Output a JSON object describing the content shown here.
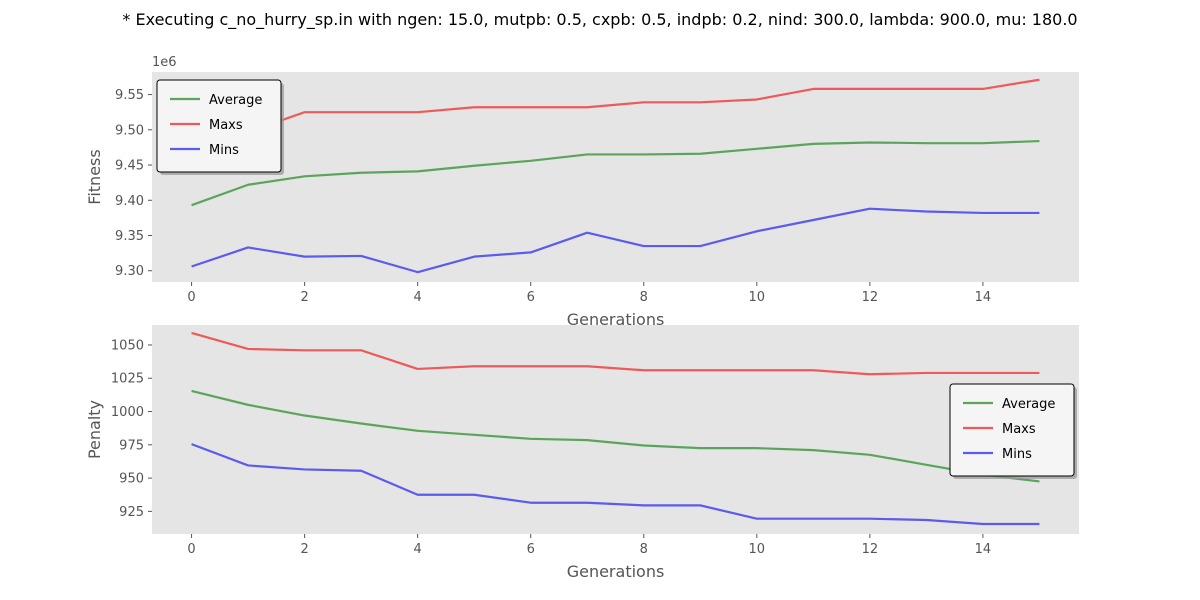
{
  "figure_title": "* Executing c_no_hurry_sp.in with ngen: 15.0, mutpb: 0.5, cxpb: 0.5, indpb: 0.2, nind: 300.0, lambda: 900.0, mu: 180.0",
  "colors": {
    "panel_bg": "#e5e5e5",
    "average": "#5ba55b",
    "maxs": "#ee5a5a",
    "mins": "#5b5bee"
  },
  "chart_data": [
    {
      "type": "line",
      "ylabel": "Fitness",
      "xlabel": "Generations",
      "scale_label": "1e6",
      "x": [
        0,
        1,
        2,
        3,
        4,
        5,
        6,
        7,
        8,
        9,
        10,
        11,
        12,
        13,
        14,
        15
      ],
      "xlim": [
        -0.7,
        15.7
      ],
      "xticks": [
        0,
        2,
        4,
        6,
        8,
        10,
        12,
        14
      ],
      "xtick_labels": [
        "0",
        "2",
        "4",
        "6",
        "8",
        "10",
        "12",
        "14"
      ],
      "ylim": [
        9.284,
        9.582
      ],
      "yticks": [
        9.3,
        9.35,
        9.4,
        9.45,
        9.5,
        9.55
      ],
      "ytick_labels": [
        "9.30",
        "9.35",
        "9.40",
        "9.45",
        "9.50",
        "9.55"
      ],
      "grid": false,
      "legend_position": "upper-left",
      "series": [
        {
          "name": "Average",
          "color_key": "average",
          "values": [
            9.393,
            9.422,
            9.434,
            9.439,
            9.441,
            9.449,
            9.456,
            9.465,
            9.465,
            9.466,
            9.473,
            9.48,
            9.482,
            9.481,
            9.481,
            9.484
          ]
        },
        {
          "name": "Maxs",
          "color_key": "maxs",
          "values": [
            9.488,
            9.497,
            9.525,
            9.525,
            9.525,
            9.532,
            9.532,
            9.532,
            9.539,
            9.539,
            9.543,
            9.558,
            9.558,
            9.558,
            9.558,
            9.571
          ]
        },
        {
          "name": "Mins",
          "color_key": "mins",
          "values": [
            9.306,
            9.333,
            9.32,
            9.321,
            9.298,
            9.32,
            9.326,
            9.354,
            9.335,
            9.335,
            9.356,
            9.372,
            9.388,
            9.384,
            9.382,
            9.382
          ]
        }
      ]
    },
    {
      "type": "line",
      "ylabel": "Penalty",
      "xlabel": "Generations",
      "x": [
        0,
        1,
        2,
        3,
        4,
        5,
        6,
        7,
        8,
        9,
        10,
        11,
        12,
        13,
        14,
        15
      ],
      "xlim": [
        -0.7,
        15.7
      ],
      "xticks": [
        0,
        2,
        4,
        6,
        8,
        10,
        12,
        14
      ],
      "xtick_labels": [
        "0",
        "2",
        "4",
        "6",
        "8",
        "10",
        "12",
        "14"
      ],
      "ylim": [
        908,
        1065
      ],
      "yticks": [
        925,
        950,
        975,
        1000,
        1025,
        1050
      ],
      "ytick_labels": [
        "925",
        "950",
        "975",
        "1000",
        "1025",
        "1050"
      ],
      "grid": false,
      "legend_position": "center-right",
      "series": [
        {
          "name": "Average",
          "color_key": "average",
          "values": [
            1015.5,
            1005,
            997,
            991,
            985.5,
            982.5,
            979.5,
            978.5,
            974.5,
            972.5,
            972.5,
            971,
            967.5,
            960,
            952.5,
            947.5
          ]
        },
        {
          "name": "Maxs",
          "color_key": "maxs",
          "values": [
            1059,
            1047,
            1046,
            1046,
            1032,
            1034,
            1034,
            1034,
            1031,
            1031,
            1031,
            1031,
            1028,
            1029,
            1029,
            1029
          ]
        },
        {
          "name": "Mins",
          "color_key": "mins",
          "values": [
            975.5,
            959.5,
            956.5,
            955.5,
            937.5,
            937.5,
            931.5,
            931.5,
            929.5,
            929.5,
            919.5,
            919.5,
            919.5,
            918.5,
            915.5,
            915.5
          ]
        }
      ]
    }
  ]
}
